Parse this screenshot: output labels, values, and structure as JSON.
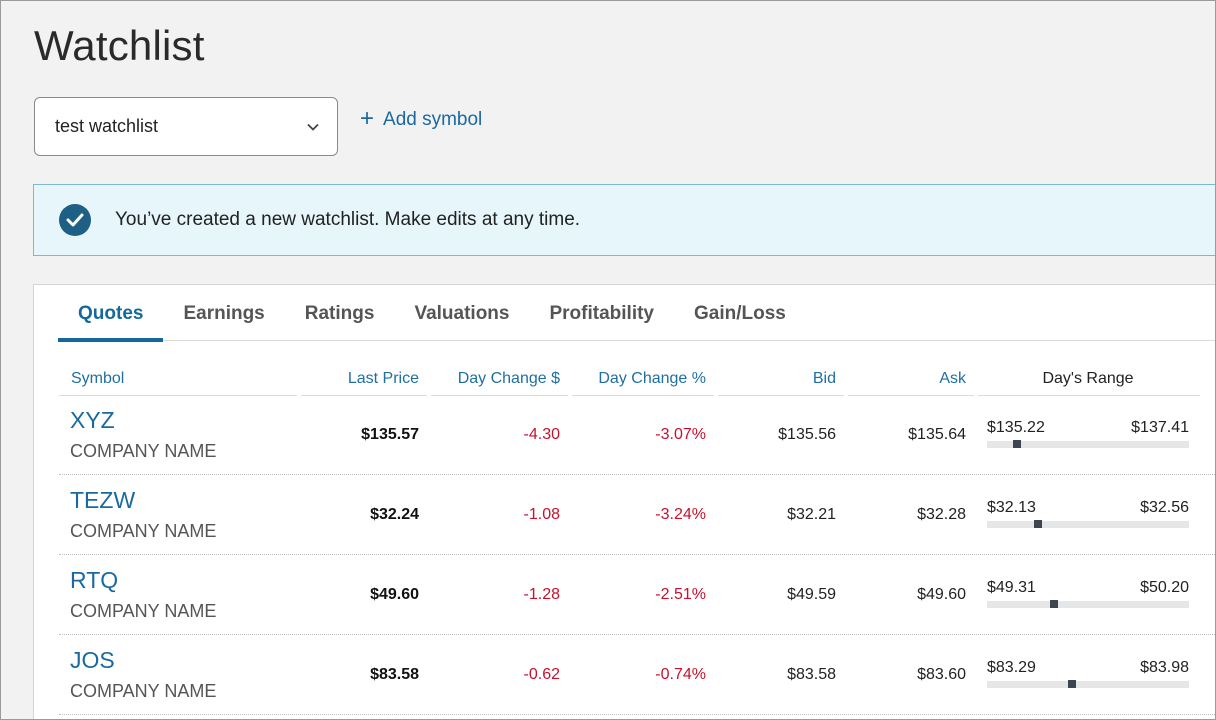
{
  "page": {
    "title": "Watchlist"
  },
  "watchlist_select": {
    "value": "test watchlist"
  },
  "add_symbol": {
    "label": "Add symbol",
    "icon": "plus-icon"
  },
  "banner": {
    "message": "You’ve created a new watchlist. Make edits at any time.",
    "icon": "check-circle-icon"
  },
  "tabs": [
    {
      "label": "Quotes",
      "active": true
    },
    {
      "label": "Earnings",
      "active": false
    },
    {
      "label": "Ratings",
      "active": false
    },
    {
      "label": "Valuations",
      "active": false
    },
    {
      "label": "Profitability",
      "active": false
    },
    {
      "label": "Gain/Loss",
      "active": false
    }
  ],
  "columns": {
    "symbol": "Symbol",
    "last_price": "Last Price",
    "day_change_dollar": "Day Change $",
    "day_change_pct": "Day Change %",
    "bid": "Bid",
    "ask": "Ask",
    "days_range": "Day's Range"
  },
  "rows": [
    {
      "symbol": "XYZ",
      "company": "COMPANY NAME",
      "last": "$135.57",
      "chg": "-4.30",
      "pct": "-3.07%",
      "bid": "$135.56",
      "ask": "$135.64",
      "low": "$135.22",
      "high": "$137.41",
      "range_position": 0.15
    },
    {
      "symbol": "TEZW",
      "company": "COMPANY NAME",
      "last": "$32.24",
      "chg": "-1.08",
      "pct": "-3.24%",
      "bid": "$32.21",
      "ask": "$32.28",
      "low": "$32.13",
      "high": "$32.56",
      "range_position": 0.25
    },
    {
      "symbol": "RTQ",
      "company": "COMPANY NAME",
      "last": "$49.60",
      "chg": "-1.28",
      "pct": "-2.51%",
      "bid": "$49.59",
      "ask": "$49.60",
      "low": "$49.31",
      "high": "$50.20",
      "range_position": 0.33
    },
    {
      "symbol": "JOS",
      "company": "COMPANY NAME",
      "last": "$83.58",
      "chg": "-0.62",
      "pct": "-0.74%",
      "bid": "$83.58",
      "ask": "$83.60",
      "low": "$83.29",
      "high": "$83.98",
      "range_position": 0.42
    }
  ],
  "colors": {
    "accent": "#16689a",
    "negative": "#c8102e",
    "banner_bg": "#e6f6fb"
  }
}
